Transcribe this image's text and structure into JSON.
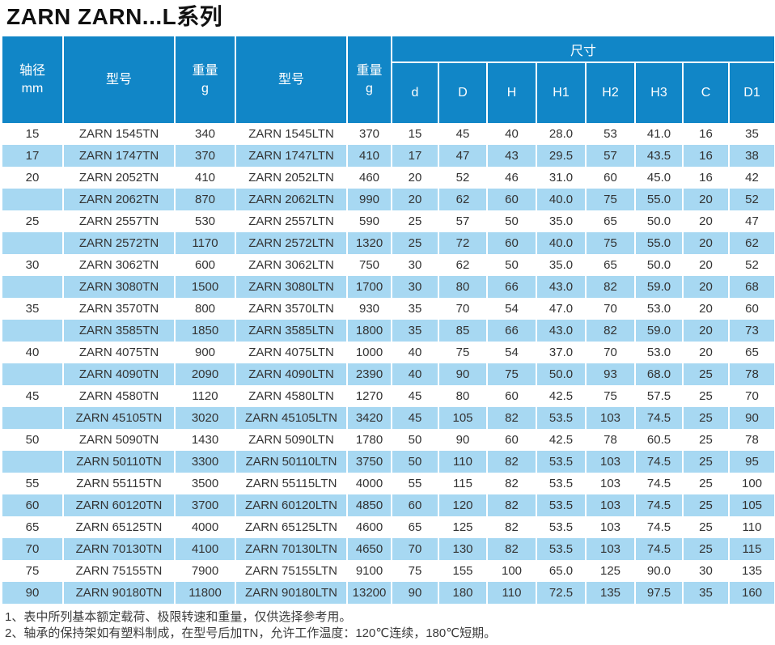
{
  "title": "ZARN ZARN...L系列",
  "colors": {
    "header_blue": "#1186c7",
    "stripe_blue": "#a7d8f2",
    "text_dark": "#333333"
  },
  "table": {
    "header": {
      "shaft_line1": "轴径",
      "shaft_line2": "mm",
      "model_label_1": "型号",
      "weight_line1_1": "重量",
      "weight_line2_1": "g",
      "model_label_2": "型号",
      "weight_line1_2": "重量",
      "weight_line2_2": "g",
      "dims_group": "尺寸",
      "dim_cols": [
        "d",
        "D",
        "H",
        "H1",
        "H2",
        "H3",
        "C",
        "D1"
      ]
    },
    "rows": [
      {
        "shaft": "15",
        "model_tn": "ZARN 1545TN",
        "weight_tn": "340",
        "model_ltn": "ZARN 1545LTN",
        "weight_ltn": "370",
        "dims": [
          "15",
          "45",
          "40",
          "28.0",
          "53",
          "41.0",
          "16",
          "35"
        ]
      },
      {
        "shaft": "17",
        "model_tn": "ZARN 1747TN",
        "weight_tn": "370",
        "model_ltn": "ZARN 1747LTN",
        "weight_ltn": "410",
        "dims": [
          "17",
          "47",
          "43",
          "29.5",
          "57",
          "43.5",
          "16",
          "38"
        ]
      },
      {
        "shaft": "20",
        "model_tn": "ZARN 2052TN",
        "weight_tn": "410",
        "model_ltn": "ZARN 2052LTN",
        "weight_ltn": "460",
        "dims": [
          "20",
          "52",
          "46",
          "31.0",
          "60",
          "45.0",
          "16",
          "42"
        ]
      },
      {
        "shaft": "",
        "model_tn": "ZARN 2062TN",
        "weight_tn": "870",
        "model_ltn": "ZARN 2062LTN",
        "weight_ltn": "990",
        "dims": [
          "20",
          "62",
          "60",
          "40.0",
          "75",
          "55.0",
          "20",
          "52"
        ]
      },
      {
        "shaft": "25",
        "model_tn": "ZARN 2557TN",
        "weight_tn": "530",
        "model_ltn": "ZARN 2557LTN",
        "weight_ltn": "590",
        "dims": [
          "25",
          "57",
          "50",
          "35.0",
          "65",
          "50.0",
          "20",
          "47"
        ]
      },
      {
        "shaft": "",
        "model_tn": "ZARN 2572TN",
        "weight_tn": "1170",
        "model_ltn": "ZARN 2572LTN",
        "weight_ltn": "1320",
        "dims": [
          "25",
          "72",
          "60",
          "40.0",
          "75",
          "55.0",
          "20",
          "62"
        ]
      },
      {
        "shaft": "30",
        "model_tn": "ZARN 3062TN",
        "weight_tn": "600",
        "model_ltn": "ZARN 3062LTN",
        "weight_ltn": "750",
        "dims": [
          "30",
          "62",
          "50",
          "35.0",
          "65",
          "50.0",
          "20",
          "52"
        ]
      },
      {
        "shaft": "",
        "model_tn": "ZARN 3080TN",
        "weight_tn": "1500",
        "model_ltn": "ZARN 3080LTN",
        "weight_ltn": "1700",
        "dims": [
          "30",
          "80",
          "66",
          "43.0",
          "82",
          "59.0",
          "20",
          "68"
        ]
      },
      {
        "shaft": "35",
        "model_tn": "ZARN 3570TN",
        "weight_tn": "800",
        "model_ltn": "ZARN 3570LTN",
        "weight_ltn": "930",
        "dims": [
          "35",
          "70",
          "54",
          "47.0",
          "70",
          "53.0",
          "20",
          "60"
        ]
      },
      {
        "shaft": "",
        "model_tn": "ZARN 3585TN",
        "weight_tn": "1850",
        "model_ltn": "ZARN 3585LTN",
        "weight_ltn": "1800",
        "dims": [
          "35",
          "85",
          "66",
          "43.0",
          "82",
          "59.0",
          "20",
          "73"
        ]
      },
      {
        "shaft": "40",
        "model_tn": "ZARN 4075TN",
        "weight_tn": "900",
        "model_ltn": "ZARN 4075LTN",
        "weight_ltn": "1000",
        "dims": [
          "40",
          "75",
          "54",
          "37.0",
          "70",
          "53.0",
          "20",
          "65"
        ]
      },
      {
        "shaft": "",
        "model_tn": "ZARN 4090TN",
        "weight_tn": "2090",
        "model_ltn": "ZARN 4090LTN",
        "weight_ltn": "2390",
        "dims": [
          "40",
          "90",
          "75",
          "50.0",
          "93",
          "68.0",
          "25",
          "78"
        ]
      },
      {
        "shaft": "45",
        "model_tn": "ZARN 4580TN",
        "weight_tn": "1120",
        "model_ltn": "ZARN 4580LTN",
        "weight_ltn": "1270",
        "dims": [
          "45",
          "80",
          "60",
          "42.5",
          "75",
          "57.5",
          "25",
          "70"
        ]
      },
      {
        "shaft": "",
        "model_tn": "ZARN 45105TN",
        "weight_tn": "3020",
        "model_ltn": "ZARN 45105LTN",
        "weight_ltn": "3420",
        "dims": [
          "45",
          "105",
          "82",
          "53.5",
          "103",
          "74.5",
          "25",
          "90"
        ]
      },
      {
        "shaft": "50",
        "model_tn": "ZARN 5090TN",
        "weight_tn": "1430",
        "model_ltn": "ZARN 5090LTN",
        "weight_ltn": "1780",
        "dims": [
          "50",
          "90",
          "60",
          "42.5",
          "78",
          "60.5",
          "25",
          "78"
        ]
      },
      {
        "shaft": "",
        "model_tn": "ZARN 50110TN",
        "weight_tn": "3300",
        "model_ltn": "ZARN 50110LTN",
        "weight_ltn": "3750",
        "dims": [
          "50",
          "110",
          "82",
          "53.5",
          "103",
          "74.5",
          "25",
          "95"
        ]
      },
      {
        "shaft": "55",
        "model_tn": "ZARN 55115TN",
        "weight_tn": "3500",
        "model_ltn": "ZARN 55115LTN",
        "weight_ltn": "4000",
        "dims": [
          "55",
          "115",
          "82",
          "53.5",
          "103",
          "74.5",
          "25",
          "100"
        ]
      },
      {
        "shaft": "60",
        "model_tn": "ZARN 60120TN",
        "weight_tn": "3700",
        "model_ltn": "ZARN 60120LTN",
        "weight_ltn": "4850",
        "dims": [
          "60",
          "120",
          "82",
          "53.5",
          "103",
          "74.5",
          "25",
          "105"
        ]
      },
      {
        "shaft": "65",
        "model_tn": "ZARN 65125TN",
        "weight_tn": "4000",
        "model_ltn": "ZARN 65125LTN",
        "weight_ltn": "4600",
        "dims": [
          "65",
          "125",
          "82",
          "53.5",
          "103",
          "74.5",
          "25",
          "110"
        ]
      },
      {
        "shaft": "70",
        "model_tn": "ZARN 70130TN",
        "weight_tn": "4100",
        "model_ltn": "ZARN 70130LTN",
        "weight_ltn": "4650",
        "dims": [
          "70",
          "130",
          "82",
          "53.5",
          "103",
          "74.5",
          "25",
          "115"
        ]
      },
      {
        "shaft": "75",
        "model_tn": "ZARN 75155TN",
        "weight_tn": "7900",
        "model_ltn": "ZARN 75155LTN",
        "weight_ltn": "9100",
        "dims": [
          "75",
          "155",
          "100",
          "65.0",
          "125",
          "90.0",
          "30",
          "135"
        ]
      },
      {
        "shaft": "90",
        "model_tn": "ZARN 90180TN",
        "weight_tn": "11800",
        "model_ltn": "ZARN 90180LTN",
        "weight_ltn": "13200",
        "dims": [
          "90",
          "180",
          "110",
          "72.5",
          "135",
          "97.5",
          "35",
          "160"
        ]
      }
    ]
  },
  "notes": [
    "1、表中所列基本额定载荷、极限转速和重量，仅供选择参考用。",
    "2、轴承的保持架如有塑料制成，在型号后加TN，允许工作温度：120℃连续，180℃短期。"
  ]
}
